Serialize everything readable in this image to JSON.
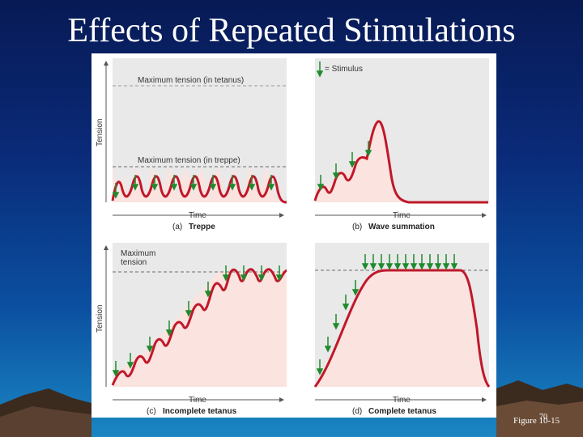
{
  "slide": {
    "title": "Effects of Repeated Stimulations",
    "figure_ref": "Figure 10-15",
    "page_number": "70"
  },
  "colors": {
    "background_top": "#071a55",
    "background_bottom": "#1a86c2",
    "panel_fill": "#fbe3df",
    "curve": "#c0182a",
    "stimulus_arrow": "#1f8a2e"
  },
  "figure": {
    "y_axis_label": "Tension",
    "x_axis_label": "Time",
    "panels": [
      {
        "letter": "(a)",
        "caption": "Treppe",
        "annotations": [
          "Maximum tension (in tetanus)",
          "Maximum tension (in treppe)"
        ]
      },
      {
        "letter": "(b)",
        "caption": "Wave summation",
        "annotations": [
          "= Stimulus"
        ]
      },
      {
        "letter": "(c)",
        "caption": "Incomplete tetanus",
        "annotations": [
          "Maximum",
          "tension"
        ]
      },
      {
        "letter": "(d)",
        "caption": "Complete tetanus",
        "annotations": []
      }
    ]
  }
}
